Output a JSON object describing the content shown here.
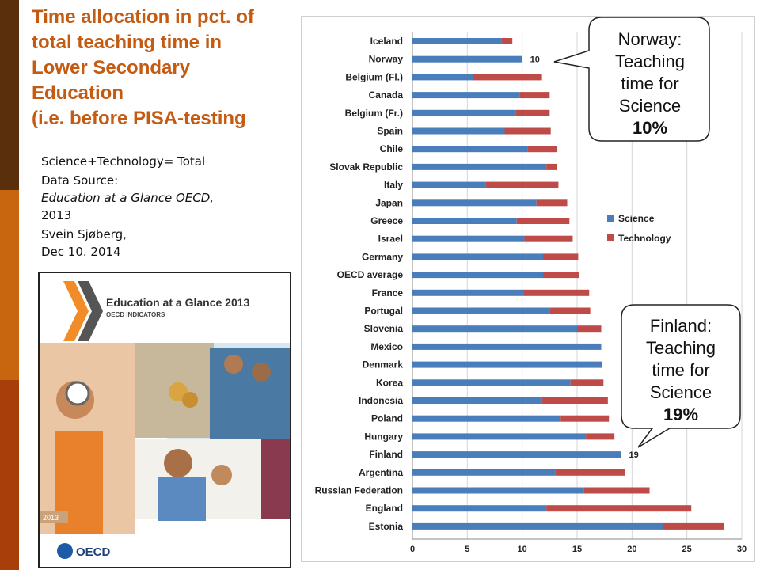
{
  "slide": {
    "title_lines": [
      "Time allocation in pct. of",
      "total teaching time in",
      "Lower Secondary",
      "Education",
      "(i.e. before PISA-testing"
    ],
    "notes": {
      "formula": "Science+Technology= Total",
      "source_label": "Data Source:",
      "source_name": "Education at a Glance OECD,",
      "source_year": "2013",
      "author": "Svein Sjøberg,",
      "date": "Dec 10. 2014"
    },
    "cover": {
      "title": "Education at a Glance 2013",
      "subtitle": "OECD INDICATORS",
      "year": "2013",
      "publisher": "OECD"
    },
    "colors": {
      "title": "#c55a11",
      "science": "#4a7ebb",
      "technology": "#be4b48"
    }
  },
  "callouts": {
    "norway": {
      "line1": "Norway:",
      "line2": "Teaching",
      "line3": "time for",
      "line4": "Science",
      "value": "10%"
    },
    "finland": {
      "line1": "Finland:",
      "line2": "Teaching",
      "line3": "time for",
      "line4": "Science",
      "value": "19%"
    }
  },
  "chart_data": {
    "type": "bar",
    "orientation": "horizontal",
    "stacked": true,
    "categories": [
      "Iceland",
      "Norway",
      "Belgium (Fl.)",
      "Canada",
      "Belgium (Fr.)",
      "Spain",
      "Chile",
      "Slovak Republic",
      "Italy",
      "Japan",
      "Greece",
      "Israel",
      "Germany",
      "OECD average",
      "France",
      "Portugal",
      "Slovenia",
      "Mexico",
      "Denmark",
      "Korea",
      "Indonesia",
      "Poland",
      "Hungary",
      "Finland",
      "Argentina",
      "Russian Federation",
      "England",
      "Estonia"
    ],
    "series": [
      {
        "name": "Science",
        "values": [
          8.1,
          10.0,
          5.5,
          9.8,
          9.4,
          8.4,
          10.5,
          12.2,
          6.7,
          11.3,
          9.5,
          10.2,
          11.9,
          11.9,
          10.1,
          12.5,
          15.0,
          17.2,
          17.3,
          14.4,
          11.8,
          13.5,
          15.8,
          19.0,
          13.0,
          15.6,
          12.2,
          22.8
        ]
      },
      {
        "name": "Technology",
        "values": [
          1.0,
          0.0,
          6.3,
          2.7,
          3.1,
          4.2,
          2.7,
          1.0,
          6.6,
          2.8,
          4.8,
          4.4,
          3.2,
          3.3,
          6.0,
          3.7,
          2.2,
          0.0,
          0.0,
          3.0,
          6.0,
          4.4,
          2.6,
          0.0,
          6.4,
          6.0,
          13.2,
          5.6
        ]
      }
    ],
    "data_labels": [
      {
        "category": "Norway",
        "text": "10"
      },
      {
        "category": "Finland",
        "text": "19"
      }
    ],
    "x_ticks": [
      0,
      5,
      10,
      15,
      20,
      25,
      30
    ],
    "xlim": [
      0,
      30
    ],
    "grid": "vertical",
    "legend_position": "right"
  }
}
